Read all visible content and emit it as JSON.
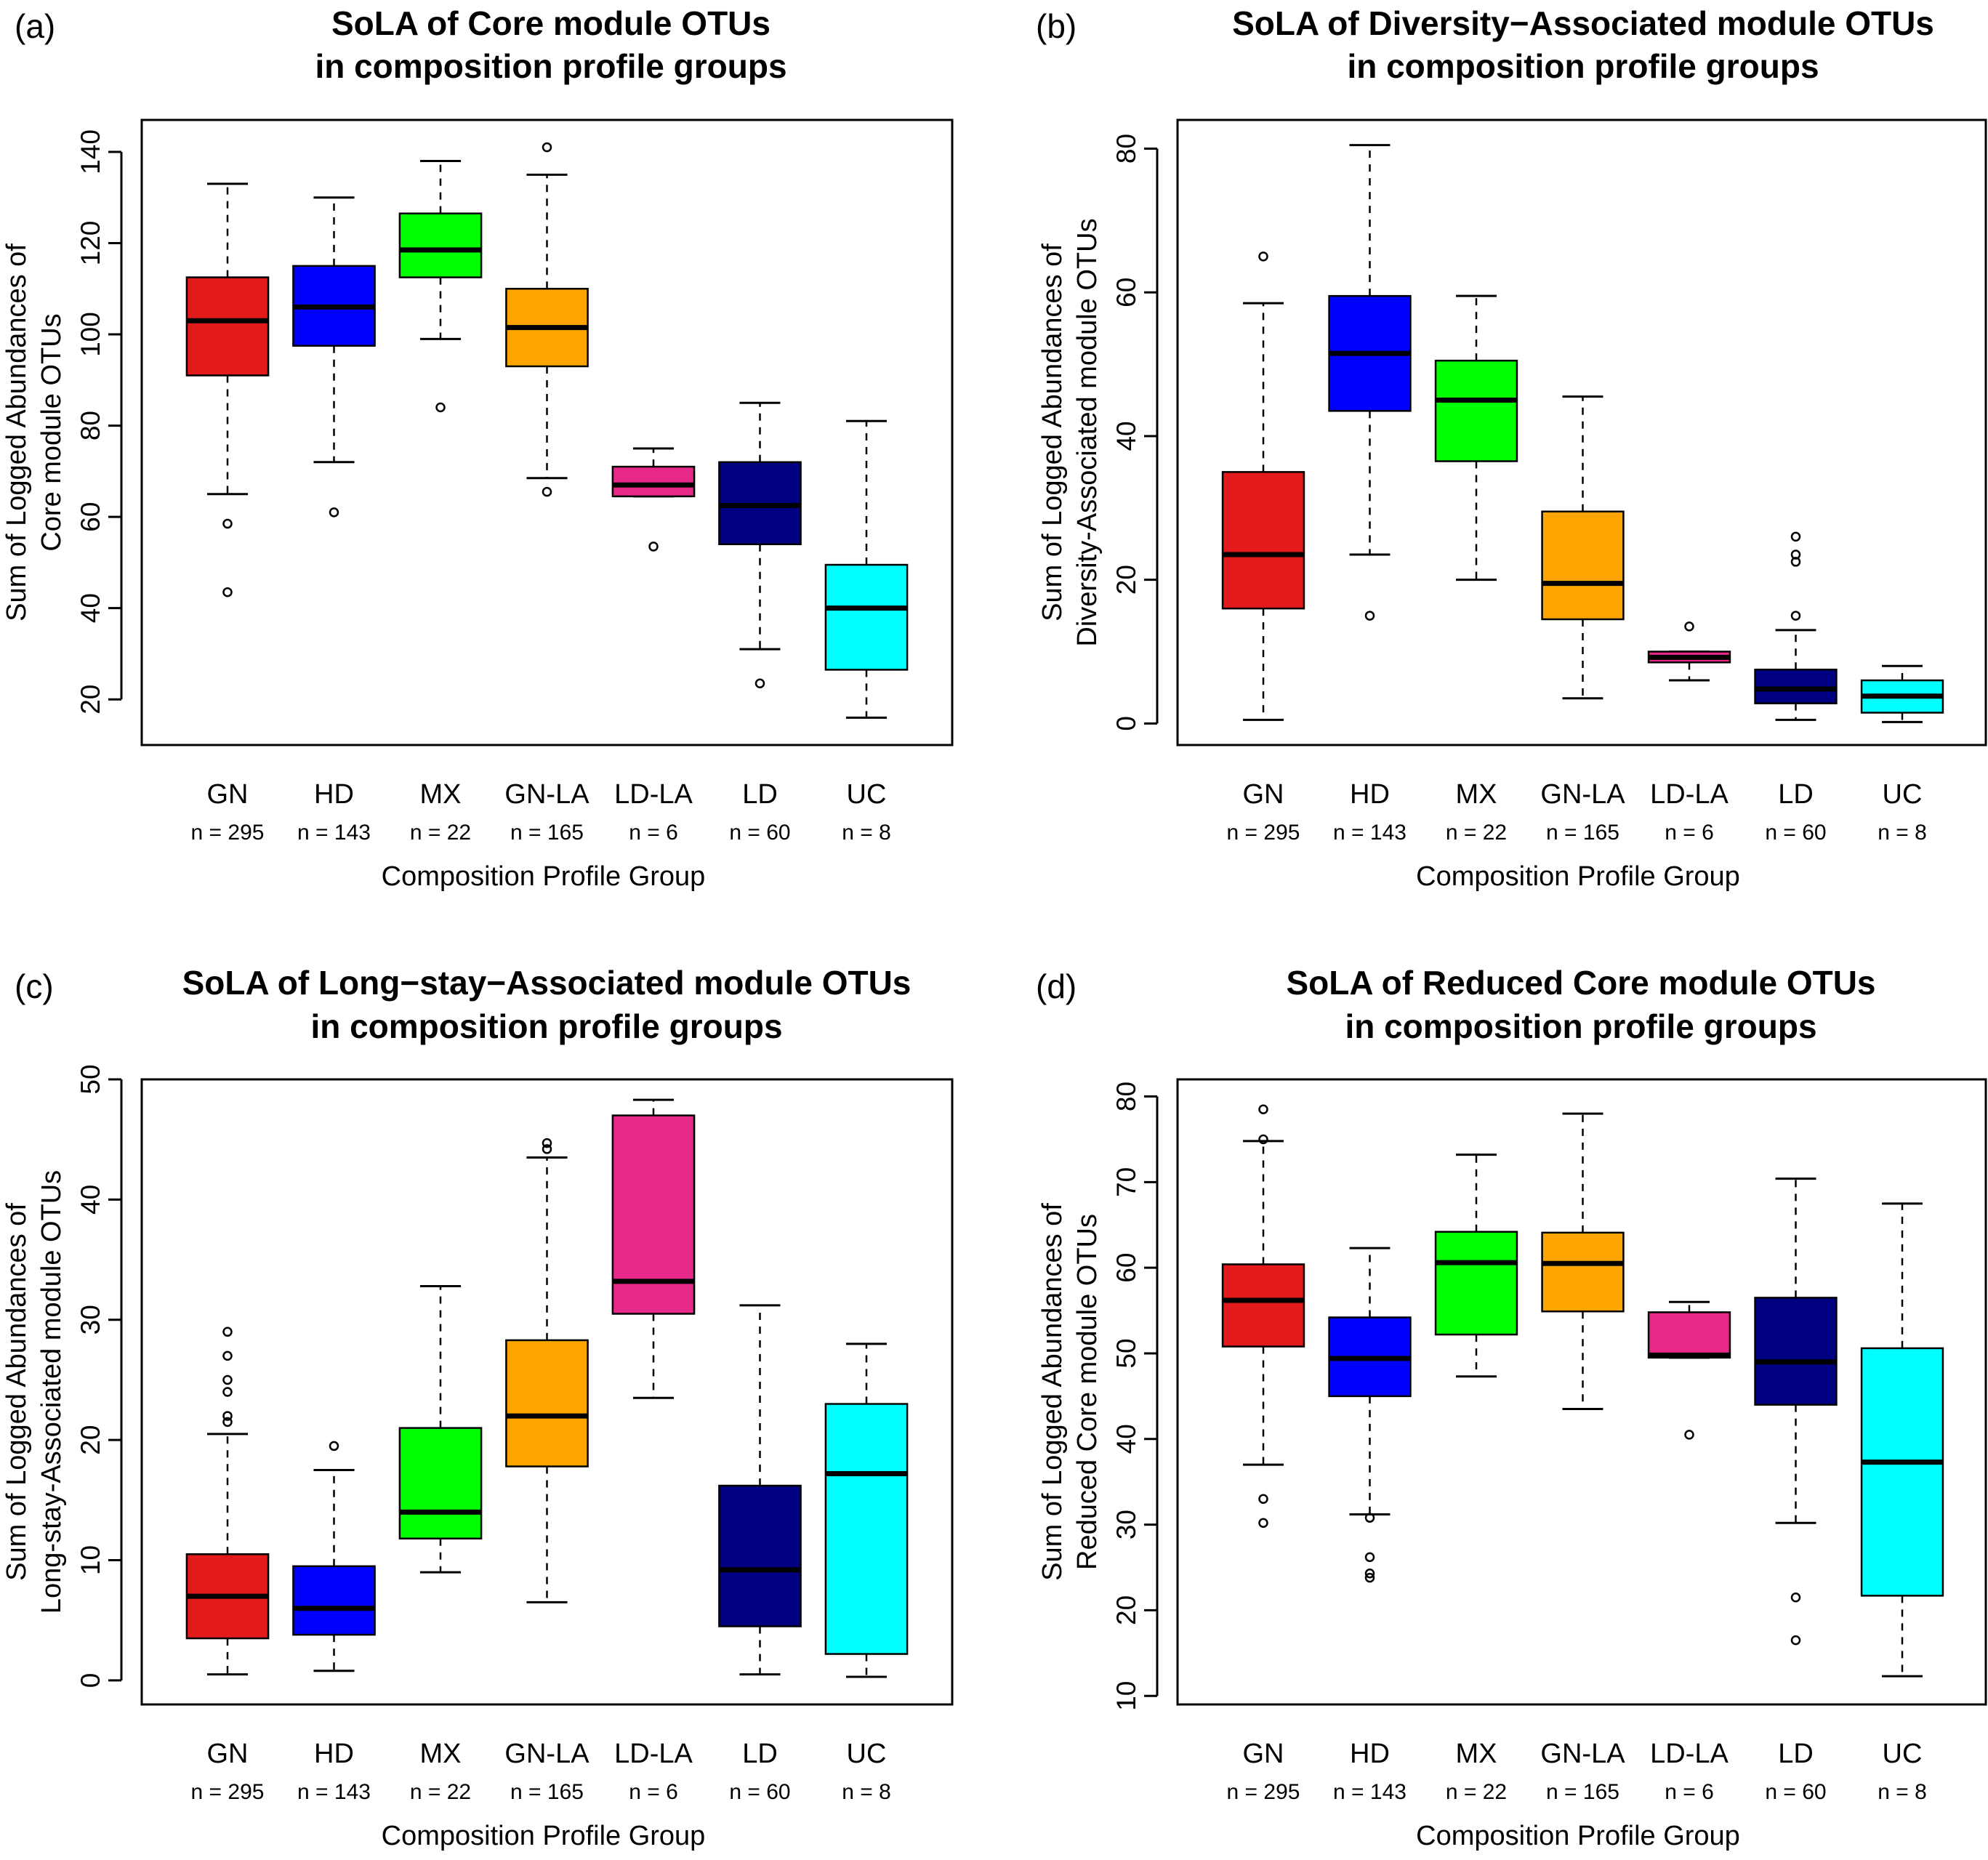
{
  "figure": {
    "categories": [
      "GN",
      "HD",
      "MX",
      "GN-LA",
      "LD-LA",
      "LD",
      "UC"
    ],
    "counts": [
      "n = 295",
      "n = 143",
      "n = 22",
      "n = 165",
      "n = 6",
      "n = 60",
      "n = 8"
    ],
    "colors": [
      "#e31a1c",
      "#0000ff",
      "#00ff00",
      "#ffa500",
      "#e7298a",
      "#000080",
      "#00ffff"
    ],
    "xlabel": "Composition Profile Group"
  },
  "chart_data": [
    {
      "type": "box",
      "panel_label": "(a)",
      "title_line1": "SoLA of Core module OTUs",
      "title_line2": "in composition profile groups",
      "ylabel_line1": "Sum of Logged Abundances of",
      "ylabel_line2": "Core module OTUs",
      "xlabel": "Composition Profile Group",
      "ylim": [
        10,
        147
      ],
      "yticks": [
        20,
        40,
        60,
        80,
        100,
        120,
        140
      ],
      "tick_labels": [
        "20",
        "40",
        "60",
        "80",
        "100",
        "120",
        "140"
      ],
      "boxes": [
        {
          "group": "GN",
          "lower_whisker": 65,
          "q1": 91,
          "median": 103,
          "q3": 112.5,
          "upper_whisker": 133,
          "outliers": [
            58.5,
            43.5
          ]
        },
        {
          "group": "HD",
          "lower_whisker": 72,
          "q1": 97.5,
          "median": 106,
          "q3": 115,
          "upper_whisker": 130,
          "outliers": [
            61
          ]
        },
        {
          "group": "MX",
          "lower_whisker": 99,
          "q1": 112.5,
          "median": 118.5,
          "q3": 126.5,
          "upper_whisker": 138,
          "outliers": [
            84
          ]
        },
        {
          "group": "GN-LA",
          "lower_whisker": 68.5,
          "q1": 93,
          "median": 101.5,
          "q3": 110,
          "upper_whisker": 135,
          "outliers": [
            141,
            65.5
          ]
        },
        {
          "group": "LD-LA",
          "lower_whisker": 64.5,
          "q1": 64.5,
          "median": 67,
          "q3": 71,
          "upper_whisker": 75,
          "outliers": [
            53.5
          ]
        },
        {
          "group": "LD",
          "lower_whisker": 31,
          "q1": 54,
          "median": 62.5,
          "q3": 72,
          "upper_whisker": 85,
          "outliers": [
            23.5
          ]
        },
        {
          "group": "UC",
          "lower_whisker": 16,
          "q1": 26.5,
          "median": 40,
          "q3": 49.5,
          "upper_whisker": 81,
          "outliers": []
        }
      ]
    },
    {
      "type": "box",
      "panel_label": "(b)",
      "title_line1": "SoLA of Diversity−Associated module OTUs",
      "title_line2": "in composition profile groups",
      "ylabel_line1": "Sum of Logged Abundances of",
      "ylabel_line2": "Diversity-Associated module OTUs",
      "xlabel": "Composition Profile Group",
      "ylim": [
        -3,
        84
      ],
      "yticks": [
        0,
        20,
        40,
        60,
        80
      ],
      "tick_labels": [
        "0",
        "20",
        "40",
        "60",
        "80"
      ],
      "boxes": [
        {
          "group": "GN",
          "lower_whisker": 0.5,
          "q1": 16,
          "median": 23.5,
          "q3": 35,
          "upper_whisker": 58.5,
          "outliers": [
            65
          ]
        },
        {
          "group": "HD",
          "lower_whisker": 23.5,
          "q1": 43.5,
          "median": 51.5,
          "q3": 59.5,
          "upper_whisker": 80.5,
          "outliers": [
            15
          ]
        },
        {
          "group": "MX",
          "lower_whisker": 20,
          "q1": 36.5,
          "median": 45,
          "q3": 50.5,
          "upper_whisker": 59.5,
          "outliers": []
        },
        {
          "group": "GN-LA",
          "lower_whisker": 3.5,
          "q1": 14.5,
          "median": 19.5,
          "q3": 29.5,
          "upper_whisker": 45.5,
          "outliers": []
        },
        {
          "group": "LD-LA",
          "lower_whisker": 6,
          "q1": 8.5,
          "median": 9.2,
          "q3": 10,
          "upper_whisker": 10,
          "outliers": [
            13.5
          ]
        },
        {
          "group": "LD",
          "lower_whisker": 0.5,
          "q1": 2.8,
          "median": 4.8,
          "q3": 7.5,
          "upper_whisker": 13,
          "outliers": [
            15,
            22.5,
            23.5,
            26
          ]
        },
        {
          "group": "UC",
          "lower_whisker": 0.2,
          "q1": 1.5,
          "median": 3.8,
          "q3": 6,
          "upper_whisker": 8,
          "outliers": []
        }
      ]
    },
    {
      "type": "box",
      "panel_label": "(c)",
      "title_line1": "SoLA of Long−stay−Associated module OTUs",
      "title_line2": "in composition profile groups",
      "ylabel_line1": "Sum of Logged Abundances of",
      "ylabel_line2": "Long-stay-Associated module OTUs",
      "xlabel": "Composition Profile Group",
      "ylim": [
        -2,
        50
      ],
      "yticks": [
        0,
        10,
        20,
        30,
        40,
        50
      ],
      "tick_labels": [
        "0",
        "10",
        "20",
        "30",
        "40",
        "50"
      ],
      "boxes": [
        {
          "group": "GN",
          "lower_whisker": 0.5,
          "q1": 3.5,
          "median": 7,
          "q3": 10.5,
          "upper_whisker": 20.5,
          "outliers": [
            21.5,
            22,
            24,
            25,
            27,
            29
          ]
        },
        {
          "group": "HD",
          "lower_whisker": 0.8,
          "q1": 3.8,
          "median": 6,
          "q3": 9.5,
          "upper_whisker": 17.5,
          "outliers": [
            19.5
          ]
        },
        {
          "group": "MX",
          "lower_whisker": 9,
          "q1": 11.8,
          "median": 14,
          "q3": 21,
          "upper_whisker": 32.8,
          "outliers": []
        },
        {
          "group": "GN-LA",
          "lower_whisker": 6.5,
          "q1": 17.8,
          "median": 22,
          "q3": 28.3,
          "upper_whisker": 43.5,
          "outliers": [
            44.2,
            44.7
          ]
        },
        {
          "group": "LD-LA",
          "lower_whisker": 23.5,
          "q1": 30.5,
          "median": 33.2,
          "q3": 47,
          "upper_whisker": 48.3,
          "outliers": []
        },
        {
          "group": "LD",
          "lower_whisker": 0.5,
          "q1": 4.5,
          "median": 9.2,
          "q3": 16.2,
          "upper_whisker": 31.2,
          "outliers": []
        },
        {
          "group": "UC",
          "lower_whisker": 0.3,
          "q1": 2.2,
          "median": 17.2,
          "q3": 23,
          "upper_whisker": 28,
          "outliers": []
        }
      ]
    },
    {
      "type": "box",
      "panel_label": "(d)",
      "title_line1": "SoLA of Reduced Core module OTUs",
      "title_line2": "in composition profile groups",
      "ylabel_line1": "Sum of Logged Abundances of",
      "ylabel_line2": "Reduced Core module OTUs",
      "xlabel": "Composition Profile Group",
      "ylim": [
        9,
        82
      ],
      "yticks": [
        10,
        20,
        30,
        40,
        50,
        60,
        70,
        80
      ],
      "tick_labels": [
        "10",
        "20",
        "30",
        "40",
        "50",
        "60",
        "70",
        "80"
      ],
      "boxes": [
        {
          "group": "GN",
          "lower_whisker": 37,
          "q1": 50.8,
          "median": 56.2,
          "q3": 60.4,
          "upper_whisker": 74.8,
          "outliers": [
            78.5,
            75,
            33,
            30.2
          ]
        },
        {
          "group": "HD",
          "lower_whisker": 31.2,
          "q1": 45,
          "median": 49.4,
          "q3": 54.2,
          "upper_whisker": 62.3,
          "outliers": [
            30.8,
            26.2,
            24.3,
            23.8
          ]
        },
        {
          "group": "MX",
          "lower_whisker": 47.3,
          "q1": 52.2,
          "median": 60.6,
          "q3": 64.2,
          "upper_whisker": 73.2,
          "outliers": []
        },
        {
          "group": "GN-LA",
          "lower_whisker": 43.5,
          "q1": 54.9,
          "median": 60.5,
          "q3": 64.1,
          "upper_whisker": 78,
          "outliers": []
        },
        {
          "group": "LD-LA",
          "lower_whisker": 49.5,
          "q1": 49.5,
          "median": 49.8,
          "q3": 54.8,
          "upper_whisker": 56,
          "outliers": [
            40.5
          ]
        },
        {
          "group": "LD",
          "lower_whisker": 30.2,
          "q1": 44,
          "median": 49,
          "q3": 56.5,
          "upper_whisker": 70.4,
          "outliers": [
            21.5,
            16.5
          ]
        },
        {
          "group": "UC",
          "lower_whisker": 12.3,
          "q1": 21.7,
          "median": 37.3,
          "q3": 50.6,
          "upper_whisker": 67.5,
          "outliers": []
        }
      ]
    }
  ]
}
